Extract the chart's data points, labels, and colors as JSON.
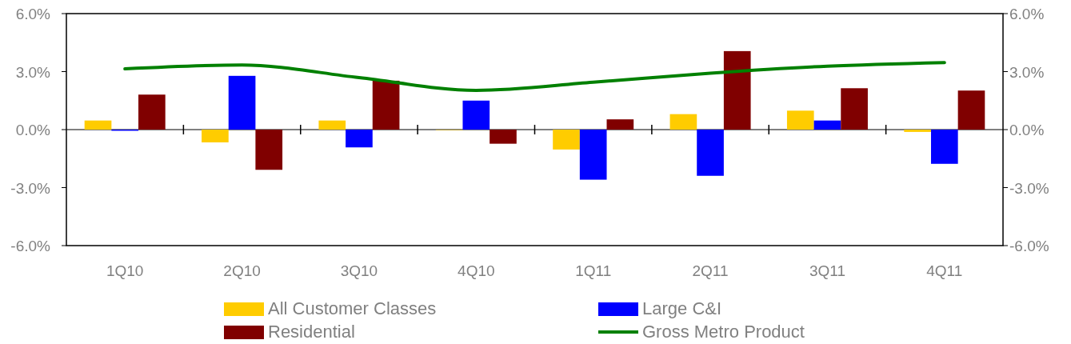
{
  "chart_data": {
    "type": "bar",
    "categories": [
      "1Q10",
      "2Q10",
      "3Q10",
      "4Q10",
      "1Q11",
      "2Q11",
      "3Q11",
      "4Q11"
    ],
    "series": [
      {
        "name": "All Customer Classes",
        "color": "#ffcc00",
        "values": [
          0.47,
          -0.66,
          0.47,
          0,
          -1.03,
          0.8,
          0.98,
          -0.12
        ]
      },
      {
        "name": "Large C&I",
        "color": "#0000ff",
        "values": [
          -0.06,
          2.78,
          -0.92,
          1.5,
          -2.59,
          -2.39,
          0.47,
          -1.77
        ]
      },
      {
        "name": "Residential",
        "color": "#800000",
        "values": [
          1.81,
          -2.08,
          2.53,
          -0.73,
          0.53,
          4.06,
          2.14,
          2.02
        ]
      },
      {
        "name": "Gross Metro Product",
        "color": "#008000",
        "type": "line",
        "marker": "none",
        "values": [
          3.14,
          3.34,
          2.69,
          2.03,
          2.45,
          2.92,
          3.28,
          3.47
        ]
      }
    ],
    "ylim": [
      -6,
      6
    ],
    "yticks": [
      {
        "value": -6,
        "label": "-6.0%"
      },
      {
        "value": -3,
        "label": "-3.0%"
      },
      {
        "value": 0,
        "label": "0.0%"
      },
      {
        "value": 3,
        "label": "3.0%"
      },
      {
        "value": 6,
        "label": "6.0%"
      }
    ],
    "y2lim": [
      -6,
      6
    ],
    "y2ticks": [
      {
        "value": -6,
        "label": "-6.0%"
      },
      {
        "value": -3,
        "label": "-3.0%"
      },
      {
        "value": 0,
        "label": "0.0%"
      },
      {
        "value": 3,
        "label": "3.0%"
      },
      {
        "value": 6,
        "label": "6.0%"
      }
    ],
    "legend": "bottom"
  }
}
